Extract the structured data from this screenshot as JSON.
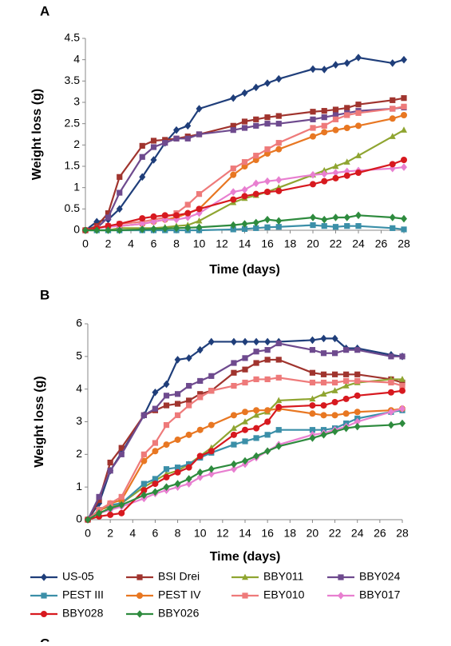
{
  "chart_data": [
    {
      "type": "line",
      "panel": "A",
      "x_label": "Time (days)",
      "y_label": "Weight loss (g)",
      "x": [
        0,
        1,
        2,
        3,
        5,
        6,
        7,
        8,
        9,
        10,
        13,
        14,
        15,
        16,
        17,
        20,
        21,
        22,
        23,
        24,
        27,
        28
      ],
      "xlim": [
        0,
        28
      ],
      "xticks": [
        0,
        2,
        4,
        6,
        8,
        10,
        12,
        14,
        16,
        18,
        20,
        22,
        24,
        26,
        28
      ],
      "ylim": [
        0,
        4.5
      ],
      "yticks": [
        0,
        0.5,
        1,
        1.5,
        2,
        2.5,
        3,
        3.5,
        4,
        4.5
      ],
      "grid": false,
      "series": [
        {
          "color": "#1f3e7a",
          "marker": "diamond",
          "values": [
            0,
            0.2,
            0.25,
            0.5,
            1.25,
            1.65,
            2.05,
            2.35,
            2.45,
            2.85,
            3.1,
            3.22,
            3.35,
            3.45,
            3.55,
            3.78,
            3.77,
            3.88,
            3.92,
            4.05,
            3.92,
            4.0
          ]
        },
        {
          "color": "#a0342e",
          "marker": "square",
          "values": [
            0,
            0.1,
            0.4,
            1.25,
            1.98,
            2.1,
            2.12,
            2.15,
            2.2,
            2.25,
            2.45,
            2.55,
            2.6,
            2.65,
            2.68,
            2.78,
            2.8,
            2.83,
            2.87,
            2.95,
            3.05,
            3.1
          ]
        },
        {
          "color": "#8fa531",
          "marker": "triangle",
          "values": [
            0,
            0,
            0,
            0.05,
            0.05,
            0.05,
            0.07,
            0.1,
            0.12,
            0.22,
            0.65,
            0.75,
            0.82,
            0.9,
            1.0,
            1.3,
            1.4,
            1.5,
            1.6,
            1.75,
            2.2,
            2.35
          ]
        },
        {
          "color": "#6e4a8e",
          "marker": "square",
          "values": [
            0,
            0.05,
            0.3,
            0.88,
            1.72,
            1.95,
            2.05,
            2.15,
            2.15,
            2.25,
            2.35,
            2.4,
            2.45,
            2.5,
            2.5,
            2.6,
            2.65,
            2.7,
            2.75,
            2.8,
            2.85,
            2.88
          ]
        },
        {
          "color": "#3b8fa8",
          "marker": "square",
          "values": [
            0,
            0,
            0,
            0,
            0,
            0,
            0,
            0,
            0,
            0,
            0.02,
            0.03,
            0.05,
            0.07,
            0.08,
            0.12,
            0.1,
            0.08,
            0.1,
            0.1,
            0.05,
            0.02
          ]
        },
        {
          "color": "#e87722",
          "marker": "circle",
          "values": [
            0,
            0.05,
            0.1,
            0.1,
            0.15,
            0.2,
            0.25,
            0.3,
            0.4,
            0.5,
            1.3,
            1.5,
            1.65,
            1.8,
            1.9,
            2.2,
            2.3,
            2.35,
            2.4,
            2.45,
            2.62,
            2.7
          ]
        },
        {
          "color": "#ee7a7a",
          "marker": "square",
          "values": [
            0,
            0.05,
            0.1,
            0.15,
            0.2,
            0.25,
            0.3,
            0.4,
            0.6,
            0.85,
            1.45,
            1.6,
            1.75,
            1.9,
            2.05,
            2.4,
            2.45,
            2.6,
            2.7,
            2.75,
            2.85,
            2.9
          ]
        },
        {
          "color": "#e87fd0",
          "marker": "diamond",
          "values": [
            0,
            0.05,
            0.08,
            0.1,
            0.15,
            0.2,
            0.25,
            0.25,
            0.3,
            0.4,
            0.9,
            0.95,
            1.1,
            1.15,
            1.18,
            1.3,
            1.32,
            1.35,
            1.38,
            1.4,
            1.45,
            1.48
          ]
        },
        {
          "color": "#d7191f",
          "marker": "circle",
          "values": [
            0,
            0.05,
            0.1,
            0.15,
            0.28,
            0.32,
            0.35,
            0.35,
            0.4,
            0.5,
            0.72,
            0.8,
            0.85,
            0.9,
            0.92,
            1.08,
            1.15,
            1.22,
            1.28,
            1.35,
            1.55,
            1.65
          ]
        },
        {
          "color": "#2e8b3e",
          "marker": "diamond",
          "values": [
            0,
            0,
            0,
            0,
            0.02,
            0.03,
            0.04,
            0.05,
            0.06,
            0.07,
            0.12,
            0.15,
            0.18,
            0.25,
            0.22,
            0.3,
            0.25,
            0.3,
            0.3,
            0.35,
            0.3,
            0.27
          ]
        }
      ]
    },
    {
      "type": "line",
      "panel": "B",
      "x_label": "Time (days)",
      "y_label": "Weight loss (g)",
      "x": [
        0,
        1,
        2,
        3,
        5,
        6,
        7,
        8,
        9,
        10,
        11,
        13,
        14,
        15,
        16,
        17,
        20,
        21,
        22,
        23,
        24,
        27,
        28
      ],
      "xlim": [
        0,
        28
      ],
      "xticks": [
        0,
        2,
        4,
        6,
        8,
        10,
        12,
        14,
        16,
        18,
        20,
        22,
        24,
        26,
        28
      ],
      "ylim": [
        0,
        6
      ],
      "yticks": [
        0,
        1,
        2,
        3,
        4,
        5,
        6
      ],
      "grid": false,
      "legend": "bottom",
      "series": [
        {
          "name": "US-05",
          "color": "#1f3e7a",
          "marker": "diamond",
          "values": [
            0,
            0.5,
            1.5,
            2.05,
            3.2,
            3.9,
            4.15,
            4.9,
            4.95,
            5.2,
            5.45,
            5.45,
            5.45,
            5.45,
            5.45,
            5.45,
            5.5,
            5.55,
            5.55,
            5.25,
            5.25,
            5.05,
            5.0
          ]
        },
        {
          "name": "BSI Drei",
          "color": "#a0342e",
          "marker": "square",
          "values": [
            0,
            0.6,
            1.75,
            2.2,
            3.2,
            3.35,
            3.5,
            3.55,
            3.65,
            3.85,
            3.95,
            4.5,
            4.6,
            4.8,
            4.9,
            4.9,
            4.5,
            4.45,
            4.45,
            4.45,
            4.45,
            4.3,
            4.2
          ]
        },
        {
          "name": "BBY011",
          "color": "#8fa531",
          "marker": "triangle",
          "values": [
            0,
            0.3,
            0.4,
            0.5,
            1.0,
            1.2,
            1.4,
            1.5,
            1.7,
            1.95,
            2.2,
            2.8,
            3.0,
            3.2,
            3.3,
            3.65,
            3.7,
            3.85,
            3.95,
            4.1,
            4.2,
            4.3,
            4.3
          ]
        },
        {
          "name": "BBY024",
          "color": "#6e4a8e",
          "marker": "square",
          "values": [
            0,
            0.7,
            1.5,
            2.0,
            3.2,
            3.4,
            3.8,
            3.85,
            4.1,
            4.25,
            4.4,
            4.8,
            4.95,
            5.15,
            5.2,
            5.4,
            5.2,
            5.1,
            5.1,
            5.2,
            5.2,
            5.0,
            5.0
          ]
        },
        {
          "name": "PEST III",
          "color": "#3b8fa8",
          "marker": "square",
          "values": [
            0,
            0.3,
            0.45,
            0.5,
            1.1,
            1.25,
            1.55,
            1.6,
            1.7,
            1.9,
            2.05,
            2.3,
            2.4,
            2.5,
            2.6,
            2.75,
            2.75,
            2.75,
            2.8,
            2.95,
            3.1,
            3.3,
            3.35
          ]
        },
        {
          "name": "PEST IV",
          "color": "#e87722",
          "marker": "circle",
          "values": [
            0,
            0.25,
            0.5,
            0.6,
            1.8,
            2.1,
            2.3,
            2.45,
            2.6,
            2.75,
            2.9,
            3.2,
            3.3,
            3.35,
            3.35,
            3.4,
            3.25,
            3.2,
            3.2,
            3.25,
            3.3,
            3.35,
            3.4
          ]
        },
        {
          "name": "EBY010",
          "color": "#ee7a7a",
          "marker": "square",
          "values": [
            0,
            0.3,
            0.5,
            0.7,
            2.0,
            2.35,
            2.9,
            3.2,
            3.5,
            3.75,
            3.95,
            4.1,
            4.2,
            4.3,
            4.3,
            4.35,
            4.2,
            4.2,
            4.2,
            4.25,
            4.25,
            4.2,
            4.1
          ]
        },
        {
          "name": "BBY017",
          "color": "#e87fd0",
          "marker": "diamond",
          "values": [
            0,
            0.2,
            0.3,
            0.4,
            0.65,
            0.8,
            0.9,
            1.0,
            1.1,
            1.3,
            1.4,
            1.55,
            1.7,
            1.9,
            2.1,
            2.3,
            2.6,
            2.65,
            2.75,
            2.85,
            3.0,
            3.3,
            3.4
          ]
        },
        {
          "name": "BBY028",
          "color": "#d7191f",
          "marker": "circle",
          "values": [
            0,
            0.1,
            0.15,
            0.2,
            0.9,
            1.1,
            1.3,
            1.45,
            1.6,
            1.95,
            2.1,
            2.6,
            2.75,
            2.8,
            3.0,
            3.45,
            3.5,
            3.5,
            3.6,
            3.7,
            3.8,
            3.9,
            3.95
          ]
        },
        {
          "name": "BBY026",
          "color": "#2e8b3e",
          "marker": "diamond",
          "values": [
            0,
            0.2,
            0.35,
            0.45,
            0.75,
            0.85,
            1.0,
            1.1,
            1.25,
            1.45,
            1.55,
            1.7,
            1.8,
            1.95,
            2.1,
            2.25,
            2.5,
            2.6,
            2.7,
            2.8,
            2.85,
            2.9,
            2.95
          ]
        }
      ]
    }
  ],
  "next_panel": "C"
}
